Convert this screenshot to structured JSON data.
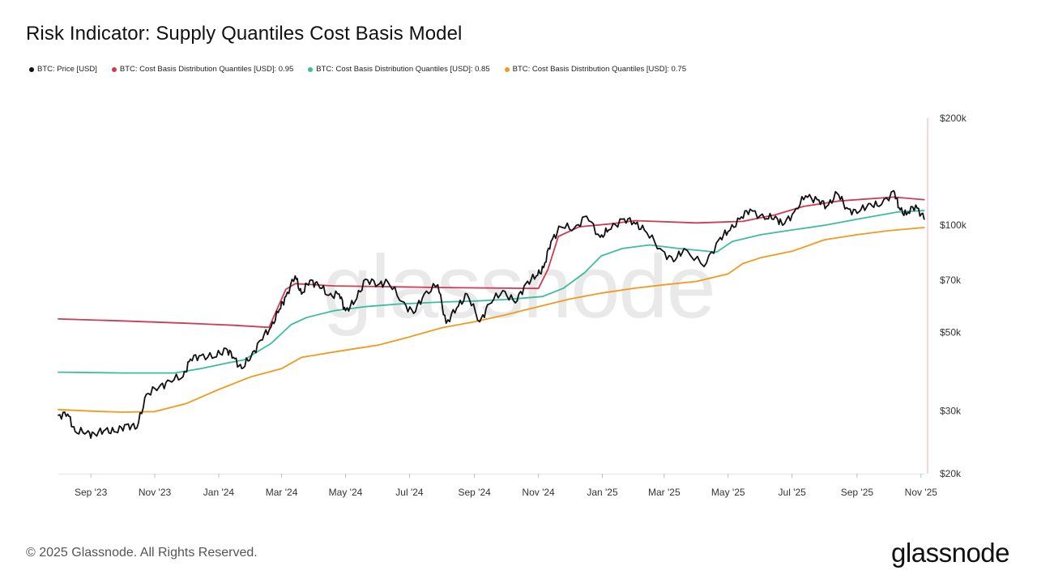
{
  "title": "Risk Indicator: Supply Quantiles Cost Basis Model",
  "footer": {
    "copyright": "© 2025 Glassnode. All Rights Reserved.",
    "logo": "glassnode"
  },
  "watermark": "glassnode",
  "legend": [
    {
      "label": "BTC: Price [USD]",
      "color": "#111111"
    },
    {
      "label": "BTC: Cost Basis Distribution Quantiles [USD]: 0.95",
      "color": "#d03a55"
    },
    {
      "label": "BTC: Cost Basis Distribution Quantiles [USD]: 0.85",
      "color": "#3dbd9e"
    },
    {
      "label": "BTC: Cost Basis Distribution Quantiles [USD]: 0.75",
      "color": "#f29a1f"
    }
  ],
  "chart_data": {
    "type": "line",
    "yscale": "log",
    "ylim": [
      20000,
      200000
    ],
    "xlim": [
      "2023-08-01",
      "2025-11-05"
    ],
    "y_ticks": [
      {
        "value": 200000,
        "label": "$200k"
      },
      {
        "value": 100000,
        "label": "$100k"
      },
      {
        "value": 70000,
        "label": "$70k"
      },
      {
        "value": 50000,
        "label": "$50k"
      },
      {
        "value": 30000,
        "label": "$30k"
      },
      {
        "value": 20000,
        "label": "$20k"
      }
    ],
    "x_ticks": [
      {
        "date": "2023-09-01",
        "label": "Sep '23"
      },
      {
        "date": "2023-11-01",
        "label": "Nov '23"
      },
      {
        "date": "2024-01-01",
        "label": "Jan '24"
      },
      {
        "date": "2024-03-01",
        "label": "Mar '24"
      },
      {
        "date": "2024-05-01",
        "label": "May '24"
      },
      {
        "date": "2024-07-01",
        "label": "Jul '24"
      },
      {
        "date": "2024-09-01",
        "label": "Sep '24"
      },
      {
        "date": "2024-11-01",
        "label": "Nov '24"
      },
      {
        "date": "2025-01-01",
        "label": "Jan '25"
      },
      {
        "date": "2025-03-01",
        "label": "Mar '25"
      },
      {
        "date": "2025-05-01",
        "label": "May '25"
      },
      {
        "date": "2025-07-01",
        "label": "Jul '25"
      },
      {
        "date": "2025-09-01",
        "label": "Sep '25"
      },
      {
        "date": "2025-11-01",
        "label": "Nov '25"
      }
    ],
    "series": [
      {
        "name": "BTC: Price [USD]",
        "color": "#111111",
        "points": [
          [
            "2023-08-01",
            29200
          ],
          [
            "2023-08-10",
            29400
          ],
          [
            "2023-08-17",
            26300
          ],
          [
            "2023-08-28",
            26100
          ],
          [
            "2023-09-05",
            25800
          ],
          [
            "2023-09-15",
            26600
          ],
          [
            "2023-09-25",
            26200
          ],
          [
            "2023-10-05",
            27500
          ],
          [
            "2023-10-15",
            26900
          ],
          [
            "2023-10-24",
            33500
          ],
          [
            "2023-11-05",
            35000
          ],
          [
            "2023-11-15",
            36500
          ],
          [
            "2023-11-28",
            37500
          ],
          [
            "2023-12-05",
            42000
          ],
          [
            "2023-12-15",
            43000
          ],
          [
            "2023-12-28",
            42500
          ],
          [
            "2024-01-08",
            45000
          ],
          [
            "2024-01-15",
            42500
          ],
          [
            "2024-01-23",
            39500
          ],
          [
            "2024-02-01",
            42800
          ],
          [
            "2024-02-10",
            47500
          ],
          [
            "2024-02-20",
            51800
          ],
          [
            "2024-02-28",
            58000
          ],
          [
            "2024-03-05",
            63000
          ],
          [
            "2024-03-14",
            72000
          ],
          [
            "2024-03-20",
            64000
          ],
          [
            "2024-03-28",
            70000
          ],
          [
            "2024-04-05",
            68000
          ],
          [
            "2024-04-15",
            63500
          ],
          [
            "2024-04-25",
            64000
          ],
          [
            "2024-05-01",
            57500
          ],
          [
            "2024-05-10",
            61000
          ],
          [
            "2024-05-20",
            70500
          ],
          [
            "2024-06-01",
            68000
          ],
          [
            "2024-06-10",
            69500
          ],
          [
            "2024-06-24",
            61000
          ],
          [
            "2024-07-05",
            56500
          ],
          [
            "2024-07-15",
            64000
          ],
          [
            "2024-07-28",
            68000
          ],
          [
            "2024-08-05",
            53000
          ],
          [
            "2024-08-15",
            58500
          ],
          [
            "2024-08-25",
            64000
          ],
          [
            "2024-09-06",
            53500
          ],
          [
            "2024-09-15",
            60000
          ],
          [
            "2024-09-28",
            65500
          ],
          [
            "2024-10-10",
            60500
          ],
          [
            "2024-10-20",
            68500
          ],
          [
            "2024-10-30",
            72000
          ],
          [
            "2024-11-06",
            76000
          ],
          [
            "2024-11-13",
            90000
          ],
          [
            "2024-11-22",
            99000
          ],
          [
            "2024-12-05",
            98000
          ],
          [
            "2024-12-17",
            106000
          ],
          [
            "2024-12-30",
            92500
          ],
          [
            "2025-01-07",
            97000
          ],
          [
            "2025-01-20",
            104000
          ],
          [
            "2025-01-31",
            102000
          ],
          [
            "2025-02-10",
            97000
          ],
          [
            "2025-02-25",
            86000
          ],
          [
            "2025-03-10",
            79000
          ],
          [
            "2025-03-20",
            86000
          ],
          [
            "2025-04-08",
            76500
          ],
          [
            "2025-04-22",
            91000
          ],
          [
            "2025-05-01",
            96000
          ],
          [
            "2025-05-12",
            104000
          ],
          [
            "2025-05-22",
            111000
          ],
          [
            "2025-06-05",
            104000
          ],
          [
            "2025-06-15",
            106000
          ],
          [
            "2025-06-22",
            100000
          ],
          [
            "2025-07-03",
            109000
          ],
          [
            "2025-07-14",
            121000
          ],
          [
            "2025-07-25",
            118000
          ],
          [
            "2025-08-03",
            113000
          ],
          [
            "2025-08-13",
            123000
          ],
          [
            "2025-08-22",
            112000
          ],
          [
            "2025-09-01",
            108000
          ],
          [
            "2025-09-12",
            115000
          ],
          [
            "2025-09-22",
            113000
          ],
          [
            "2025-10-06",
            125000
          ],
          [
            "2025-10-11",
            112000
          ],
          [
            "2025-10-18",
            107000
          ],
          [
            "2025-10-27",
            114000
          ],
          [
            "2025-11-04",
            104000
          ]
        ]
      },
      {
        "name": "BTC: Cost Basis Distribution Quantiles [USD]: 0.95",
        "color": "#d03a55",
        "points": [
          [
            "2023-08-01",
            54500
          ],
          [
            "2023-10-01",
            53800
          ],
          [
            "2023-12-01",
            53000
          ],
          [
            "2024-01-15",
            52300
          ],
          [
            "2024-02-18",
            51600
          ],
          [
            "2024-03-05",
            66000
          ],
          [
            "2024-03-14",
            68500
          ],
          [
            "2024-04-20",
            67500
          ],
          [
            "2024-06-01",
            67200
          ],
          [
            "2024-08-01",
            66800
          ],
          [
            "2024-10-01",
            66500
          ],
          [
            "2024-11-01",
            66400
          ],
          [
            "2024-11-10",
            75000
          ],
          [
            "2024-11-20",
            93000
          ],
          [
            "2024-12-10",
            99000
          ],
          [
            "2025-01-10",
            101000
          ],
          [
            "2025-02-01",
            103000
          ],
          [
            "2025-04-01",
            101500
          ],
          [
            "2025-05-15",
            102500
          ],
          [
            "2025-06-15",
            107000
          ],
          [
            "2025-07-12",
            113000
          ],
          [
            "2025-08-15",
            117000
          ],
          [
            "2025-10-06",
            120000
          ],
          [
            "2025-11-04",
            118000
          ]
        ]
      },
      {
        "name": "BTC: Cost Basis Distribution Quantiles [USD]: 0.85",
        "color": "#3dbd9e",
        "points": [
          [
            "2023-08-01",
            38600
          ],
          [
            "2023-10-01",
            38400
          ],
          [
            "2023-11-20",
            38400
          ],
          [
            "2023-12-15",
            39500
          ],
          [
            "2024-01-10",
            41000
          ],
          [
            "2024-01-25",
            41800
          ],
          [
            "2024-02-20",
            46500
          ],
          [
            "2024-03-10",
            52500
          ],
          [
            "2024-03-25",
            55000
          ],
          [
            "2024-04-20",
            57500
          ],
          [
            "2024-05-20",
            59000
          ],
          [
            "2024-06-20",
            60000
          ],
          [
            "2024-08-01",
            60800
          ],
          [
            "2024-09-01",
            61200
          ],
          [
            "2024-10-01",
            61800
          ],
          [
            "2024-11-05",
            63000
          ],
          [
            "2024-11-25",
            66500
          ],
          [
            "2024-12-15",
            73500
          ],
          [
            "2024-12-31",
            82000
          ],
          [
            "2025-01-20",
            86000
          ],
          [
            "2025-02-15",
            88000
          ],
          [
            "2025-03-15",
            86000
          ],
          [
            "2025-04-20",
            84000
          ],
          [
            "2025-05-05",
            90000
          ],
          [
            "2025-06-01",
            94000
          ],
          [
            "2025-07-01",
            97000
          ],
          [
            "2025-08-01",
            100000
          ],
          [
            "2025-09-01",
            104000
          ],
          [
            "2025-10-10",
            109000
          ],
          [
            "2025-11-04",
            110000
          ]
        ]
      },
      {
        "name": "BTC: Cost Basis Distribution Quantiles [USD]: 0.75",
        "color": "#f29a1f",
        "points": [
          [
            "2023-08-01",
            30300
          ],
          [
            "2023-09-01",
            30000
          ],
          [
            "2023-10-01",
            29800
          ],
          [
            "2023-11-01",
            29900
          ],
          [
            "2023-12-01",
            31500
          ],
          [
            "2024-01-01",
            34500
          ],
          [
            "2024-02-01",
            37500
          ],
          [
            "2024-03-01",
            39500
          ],
          [
            "2024-03-20",
            42500
          ],
          [
            "2024-04-20",
            44000
          ],
          [
            "2024-06-01",
            46000
          ],
          [
            "2024-07-01",
            48500
          ],
          [
            "2024-08-01",
            51500
          ],
          [
            "2024-09-01",
            53500
          ],
          [
            "2024-10-01",
            56000
          ],
          [
            "2024-11-01",
            59000
          ],
          [
            "2024-12-01",
            62000
          ],
          [
            "2025-01-01",
            64500
          ],
          [
            "2025-02-01",
            66500
          ],
          [
            "2025-03-01",
            68000
          ],
          [
            "2025-04-01",
            69500
          ],
          [
            "2025-05-01",
            73000
          ],
          [
            "2025-05-15",
            78000
          ],
          [
            "2025-06-01",
            81000
          ],
          [
            "2025-07-01",
            84500
          ],
          [
            "2025-08-01",
            91000
          ],
          [
            "2025-09-01",
            94000
          ],
          [
            "2025-10-01",
            96500
          ],
          [
            "2025-11-04",
            98500
          ]
        ]
      }
    ]
  }
}
